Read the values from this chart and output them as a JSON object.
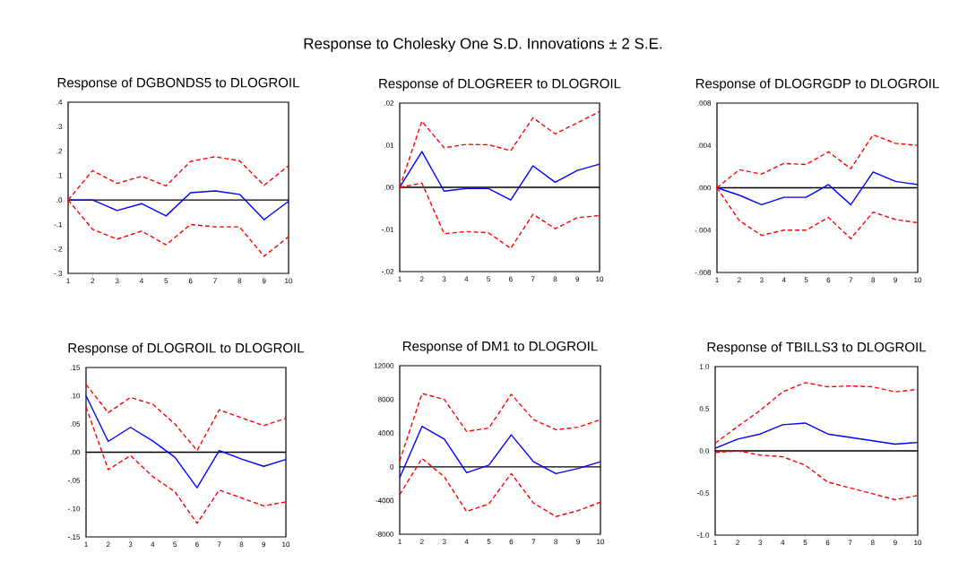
{
  "chart_data": [
    {
      "type": "line",
      "title": "Response of DGBONDS5 to DLOGROIL",
      "annotations": [
        "Response to Cholesky One S.D. Innovations ± 2 S.E."
      ],
      "x": [
        1,
        2,
        3,
        4,
        5,
        6,
        7,
        8,
        9,
        10
      ],
      "xlim": [
        1,
        10
      ],
      "xticks": [
        1,
        2,
        3,
        4,
        5,
        6,
        7,
        8,
        9,
        10
      ],
      "ylim": [
        -0.3,
        0.4
      ],
      "yticks": [
        {
          "value": -0.3,
          "label": "-.3"
        },
        {
          "value": -0.2,
          "label": "-.2"
        },
        {
          "value": -0.1,
          "label": "-.1"
        },
        {
          "value": 0,
          "label": ".0"
        },
        {
          "value": 0.1,
          "label": ".1"
        },
        {
          "value": 0.2,
          "label": ".2"
        },
        {
          "value": 0.3,
          "label": ".3"
        },
        {
          "value": 0.4,
          "label": ".4"
        }
      ],
      "ref_lines": [
        {
          "axis": "y",
          "value": 0,
          "color": "#000000"
        }
      ],
      "series": [
        {
          "color": "#0000ff",
          "line_style": "solid",
          "values": [
            0,
            0,
            -0.043,
            -0.015,
            -0.065,
            0.03,
            0.037,
            0.023,
            -0.08,
            -0.005
          ]
        },
        {
          "color": "#ff0000",
          "line_style": "dashed",
          "values": [
            0,
            0.12,
            0.068,
            0.097,
            0.058,
            0.158,
            0.177,
            0.16,
            0.06,
            0.14
          ]
        },
        {
          "color": "#ff0000",
          "line_style": "dashed",
          "values": [
            0,
            -0.12,
            -0.16,
            -0.127,
            -0.183,
            -0.1,
            -0.11,
            -0.11,
            -0.23,
            -0.15
          ]
        }
      ]
    },
    {
      "type": "line",
      "title": "Response of DLOGREER to DLOGROIL",
      "x": [
        1,
        2,
        3,
        4,
        5,
        6,
        7,
        8,
        9,
        10
      ],
      "xlim": [
        1,
        10
      ],
      "xticks": [
        1,
        2,
        3,
        4,
        5,
        6,
        7,
        8,
        9,
        10
      ],
      "ylim": [
        -0.02,
        0.02
      ],
      "yticks": [
        {
          "value": -0.02,
          "label": "-.02"
        },
        {
          "value": -0.01,
          "label": "-.01"
        },
        {
          "value": 0,
          "label": ".00"
        },
        {
          "value": 0.01,
          "label": ".01"
        },
        {
          "value": 0.02,
          "label": ".02"
        }
      ],
      "ref_lines": [
        {
          "axis": "y",
          "value": 0,
          "color": "#000000"
        }
      ],
      "series": [
        {
          "color": "#0000ff",
          "line_style": "solid",
          "values": [
            0,
            0.0085,
            -0.0009,
            -0.0003,
            -0.0003,
            -0.003,
            0.0051,
            0.0012,
            0.004,
            0.0055
          ]
        },
        {
          "color": "#ff0000",
          "line_style": "dashed",
          "values": [
            0,
            0.0157,
            0.0094,
            0.0102,
            0.0101,
            0.0087,
            0.0165,
            0.0127,
            0.0153,
            0.018
          ]
        },
        {
          "color": "#ff0000",
          "line_style": "dashed",
          "values": [
            0,
            0.001,
            -0.011,
            -0.0105,
            -0.0108,
            -0.0145,
            -0.0064,
            -0.0098,
            -0.0072,
            -0.0067
          ]
        }
      ]
    },
    {
      "type": "line",
      "title": "Response of DLOGRGDP to DLOGROIL",
      "x": [
        1,
        2,
        3,
        4,
        5,
        6,
        7,
        8,
        9,
        10
      ],
      "xlim": [
        1,
        10
      ],
      "xticks": [
        1,
        2,
        3,
        4,
        5,
        6,
        7,
        8,
        9,
        10
      ],
      "ylim": [
        -0.008,
        0.008
      ],
      "yticks": [
        {
          "value": -0.008,
          "label": "-.008"
        },
        {
          "value": -0.004,
          "label": "-.004"
        },
        {
          "value": 0,
          "label": ".000"
        },
        {
          "value": 0.004,
          "label": ".004"
        },
        {
          "value": 0.008,
          "label": ".008"
        }
      ],
      "ref_lines": [
        {
          "axis": "y",
          "value": 0,
          "color": "#000000"
        }
      ],
      "series": [
        {
          "color": "#0000ff",
          "line_style": "solid",
          "values": [
            0,
            -0.0007,
            -0.0016,
            -0.0009,
            -0.0009,
            0.0003,
            -0.0016,
            0.0015,
            0.0006,
            0.0003
          ]
        },
        {
          "color": "#ff0000",
          "line_style": "dashed",
          "values": [
            0,
            0.0017,
            0.0013,
            0.0023,
            0.0022,
            0.0034,
            0.0018,
            0.005,
            0.0042,
            0.004
          ]
        },
        {
          "color": "#ff0000",
          "line_style": "dashed",
          "values": [
            0,
            -0.0031,
            -0.0045,
            -0.004,
            -0.004,
            -0.0028,
            -0.0048,
            -0.0023,
            -0.003,
            -0.0033
          ]
        }
      ]
    },
    {
      "type": "line",
      "title": "Response of DLOGROIL to DLOGROIL",
      "x": [
        1,
        2,
        3,
        4,
        5,
        6,
        7,
        8,
        9,
        10
      ],
      "xlim": [
        1,
        10
      ],
      "xticks": [
        1,
        2,
        3,
        4,
        5,
        6,
        7,
        8,
        9,
        10
      ],
      "ylim": [
        -0.15,
        0.15
      ],
      "yticks": [
        {
          "value": -0.15,
          "label": "-.15"
        },
        {
          "value": -0.1,
          "label": "-.10"
        },
        {
          "value": -0.05,
          "label": "-.05"
        },
        {
          "value": 0,
          "label": ".00"
        },
        {
          "value": 0.05,
          "label": ".05"
        },
        {
          "value": 0.1,
          "label": ".10"
        },
        {
          "value": 0.15,
          "label": ".15"
        }
      ],
      "ref_lines": [
        {
          "axis": "y",
          "value": 0,
          "color": "#000000"
        }
      ],
      "series": [
        {
          "color": "#0000ff",
          "line_style": "solid",
          "values": [
            0.1,
            0.019,
            0.044,
            0.02,
            -0.009,
            -0.063,
            0.003,
            -0.012,
            -0.025,
            -0.013
          ]
        },
        {
          "color": "#ff0000",
          "line_style": "dashed",
          "values": [
            0.12,
            0.07,
            0.097,
            0.085,
            0.05,
            0.003,
            0.075,
            0.061,
            0.047,
            0.06
          ]
        },
        {
          "color": "#ff0000",
          "line_style": "dashed",
          "values": [
            0.08,
            -0.031,
            -0.006,
            -0.043,
            -0.07,
            -0.126,
            -0.067,
            -0.081,
            -0.095,
            -0.088
          ]
        }
      ]
    },
    {
      "type": "line",
      "title": "Response of DM1 to DLOGROIL",
      "x": [
        1,
        2,
        3,
        4,
        5,
        6,
        7,
        8,
        9,
        10
      ],
      "xlim": [
        1,
        10
      ],
      "xticks": [
        1,
        2,
        3,
        4,
        5,
        6,
        7,
        8,
        9,
        10
      ],
      "ylim": [
        -8000,
        12000
      ],
      "yticks": [
        -8000,
        -4000,
        0,
        4000,
        8000,
        12000
      ],
      "ref_lines": [
        {
          "axis": "y",
          "value": 0,
          "color": "#000000"
        }
      ],
      "series": [
        {
          "color": "#0000ff",
          "line_style": "solid",
          "values": [
            -1300,
            4800,
            3300,
            -700,
            200,
            3800,
            600,
            -800,
            -200,
            600
          ]
        },
        {
          "color": "#ff0000",
          "line_style": "dashed",
          "values": [
            700,
            8700,
            8000,
            4200,
            4600,
            8600,
            5600,
            4400,
            4700,
            5600
          ]
        },
        {
          "color": "#ff0000",
          "line_style": "dashed",
          "values": [
            -3300,
            1000,
            -1200,
            -5300,
            -4400,
            -800,
            -4300,
            -5900,
            -5200,
            -4200
          ]
        }
      ]
    },
    {
      "type": "line",
      "title": "Response of TBILLS3 to DLOGROIL",
      "x": [
        1,
        2,
        3,
        4,
        5,
        6,
        7,
        8,
        9,
        10
      ],
      "xlim": [
        1,
        10
      ],
      "xticks": [
        1,
        2,
        3,
        4,
        5,
        6,
        7,
        8,
        9,
        10
      ],
      "ylim": [
        -1.0,
        1.0
      ],
      "yticks": [
        {
          "value": -1.0,
          "label": "-1.0"
        },
        {
          "value": -0.5,
          "label": "-0.5"
        },
        {
          "value": 0,
          "label": "0.0"
        },
        {
          "value": 0.5,
          "label": "0.5"
        },
        {
          "value": 1.0,
          "label": "1.0"
        }
      ],
      "ref_lines": [
        {
          "axis": "y",
          "value": 0,
          "color": "#000000"
        }
      ],
      "series": [
        {
          "color": "#0000ff",
          "line_style": "solid",
          "values": [
            0.03,
            0.14,
            0.2,
            0.31,
            0.33,
            0.2,
            0.16,
            0.12,
            0.08,
            0.1
          ]
        },
        {
          "color": "#ff0000",
          "line_style": "dashed",
          "values": [
            0.09,
            0.29,
            0.48,
            0.7,
            0.81,
            0.76,
            0.77,
            0.76,
            0.7,
            0.73
          ]
        },
        {
          "color": "#ff0000",
          "line_style": "dashed",
          "values": [
            -0.02,
            0,
            -0.05,
            -0.07,
            -0.17,
            -0.37,
            -0.44,
            -0.51,
            -0.58,
            -0.53
          ]
        }
      ]
    }
  ]
}
